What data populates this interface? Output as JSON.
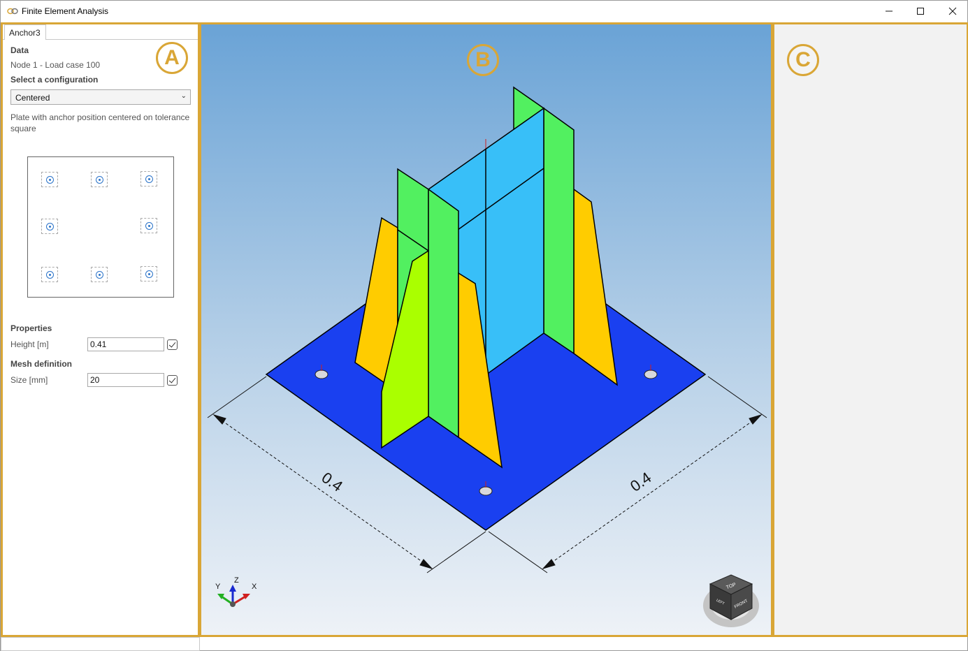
{
  "window": {
    "title": "Finite Element Analysis"
  },
  "panel_a": {
    "badge": "A",
    "tab": "Anchor3",
    "data_title": "Data",
    "node_info": "Node 1 - Load case 100",
    "config_title": "Select a configuration",
    "config_value": "Centered",
    "config_description": "Plate with anchor position centered on tolerance square",
    "properties_title": "Properties",
    "height_label": "Height [m]",
    "height_value": "0.41",
    "mesh_title": "Mesh definition",
    "size_label": "Size [mm]",
    "size_value": "20"
  },
  "panel_b": {
    "badge": "B",
    "dim_left": "0.4",
    "dim_right": "0.4",
    "axes": {
      "x": "X",
      "y": "Y",
      "z": "Z"
    },
    "view_cube": {
      "top": "TOP",
      "front": "FRONT",
      "left": "LEFT"
    }
  },
  "panel_c": {
    "badge": "C"
  },
  "colors": {
    "accent": "#d9a636",
    "plate": "#1a40f0",
    "web": "#38bff8",
    "flange": "#52f060",
    "stiffener": "#ffcc00",
    "stiffener_front": "#aaff00"
  }
}
